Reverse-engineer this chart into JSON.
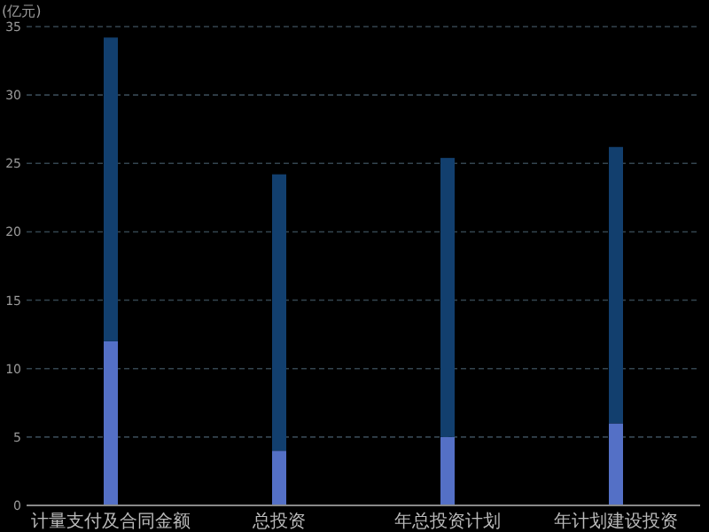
{
  "chart_data": {
    "type": "bar",
    "ylabel": "(亿元)",
    "categories": [
      "计量支付及合同金额",
      "总投资",
      "年总投资计划",
      "年计划建设投资"
    ],
    "series": [
      {
        "color": "#5470c6",
        "values": [
          12,
          4,
          5,
          6
        ]
      },
      {
        "color": "#123f6e",
        "values": [
          22.2,
          20.2,
          20.4,
          20.2
        ]
      }
    ],
    "stacked": true,
    "ylim": [
      0,
      35
    ],
    "yticks": [
      0,
      5,
      10,
      15,
      20,
      25,
      30,
      35
    ],
    "grid": "y"
  }
}
